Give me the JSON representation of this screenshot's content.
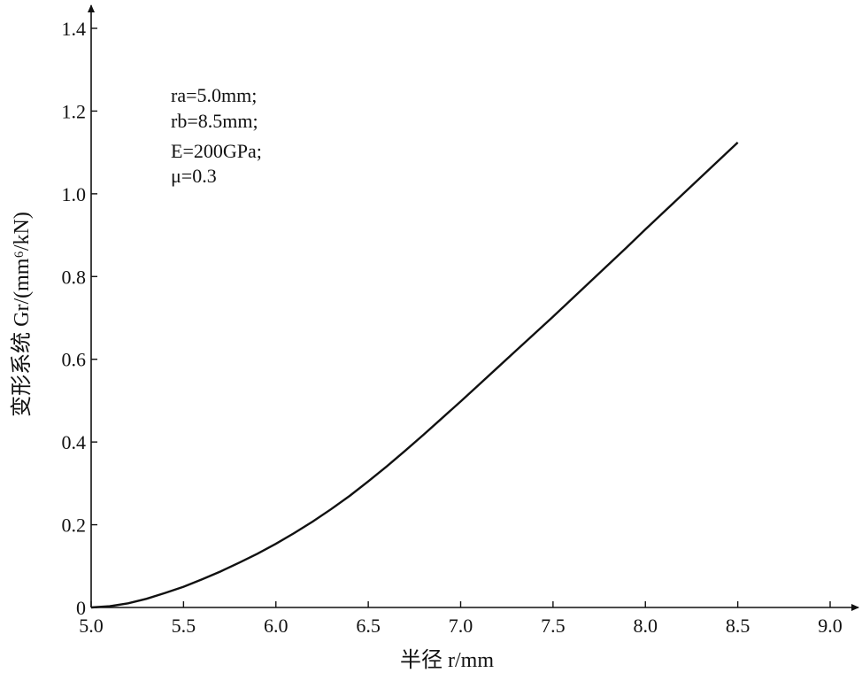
{
  "chart_data": {
    "type": "line",
    "title": "",
    "xlabel": "半径 r/mm",
    "ylabel": "变形系统 Gr/(mm⁶/kN)",
    "xlim": [
      5.0,
      9.0
    ],
    "ylim": [
      0,
      1.4
    ],
    "grid": false,
    "x_ticks": [
      "5.0",
      "5.5",
      "6.0",
      "6.5",
      "7.0",
      "7.5",
      "8.0",
      "8.5",
      "9.0"
    ],
    "y_ticks": [
      "0",
      "0.2",
      "0.4",
      "0.6",
      "0.8",
      "1.0",
      "1.2",
      "1.4"
    ],
    "annotations": [
      "ra=5.0mm;",
      "rb=8.5mm;",
      "E=200GPa;",
      "μ=0.3"
    ],
    "series": [
      {
        "x": [
          5.0,
          5.1,
          5.2,
          5.3,
          5.4,
          5.5,
          5.6,
          5.7,
          5.8,
          5.9,
          6.0,
          6.1,
          6.2,
          6.3,
          6.4,
          6.5,
          6.6,
          6.7,
          6.8,
          6.9,
          7.0,
          7.1,
          7.2,
          7.3,
          7.4,
          7.5,
          7.6,
          7.7,
          7.8,
          7.9,
          8.0,
          8.1,
          8.2,
          8.3,
          8.4,
          8.5
        ],
        "y": [
          0.0,
          0.003,
          0.01,
          0.021,
          0.035,
          0.05,
          0.068,
          0.087,
          0.108,
          0.13,
          0.154,
          0.18,
          0.208,
          0.238,
          0.27,
          0.305,
          0.341,
          0.379,
          0.418,
          0.458,
          0.498,
          0.539,
          0.58,
          0.621,
          0.662,
          0.703,
          0.745,
          0.787,
          0.829,
          0.871,
          0.914,
          0.956,
          0.998,
          1.04,
          1.082,
          1.124
        ]
      }
    ]
  }
}
